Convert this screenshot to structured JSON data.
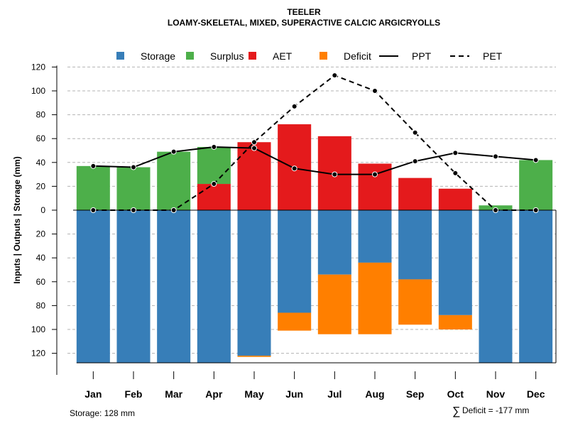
{
  "chart_data": {
    "type": "bar",
    "title": "TEELER",
    "subtitle": "LOAMY-SKELETAL, MIXED, SUPERACTIVE CALCIC ARGICRYOLLS",
    "ylabel": "Inputs | Outputs | Storage     (mm)",
    "ylim": [
      -128,
      120
    ],
    "y_ticks": [
      120,
      100,
      80,
      60,
      40,
      20,
      0,
      -20,
      -40,
      -60,
      -80,
      -100,
      -120
    ],
    "y_tick_labels": [
      "120",
      "100",
      "80",
      "60",
      "40",
      "20",
      "0",
      "20",
      "40",
      "60",
      "80",
      "100",
      "120"
    ],
    "categories": [
      "Jan",
      "Feb",
      "Mar",
      "Apr",
      "May",
      "Jun",
      "Jul",
      "Aug",
      "Sep",
      "Oct",
      "Nov",
      "Dec"
    ],
    "legend": [
      {
        "key": "storage",
        "label": "Storage",
        "kind": "box",
        "color": "#377EB8"
      },
      {
        "key": "surplus",
        "label": "Surplus",
        "kind": "box",
        "color": "#4DAF4A"
      },
      {
        "key": "aet",
        "label": "AET",
        "kind": "box",
        "color": "#E41A1C"
      },
      {
        "key": "deficit",
        "label": "Deficit",
        "kind": "box",
        "color": "#FF7F00"
      },
      {
        "key": "ppt",
        "label": "PPT",
        "kind": "solid",
        "color": "#000000"
      },
      {
        "key": "pet",
        "label": "PET",
        "kind": "dashed",
        "color": "#000000"
      }
    ],
    "series": [
      {
        "name": "Storage",
        "color": "#377EB8",
        "values": [
          128,
          128,
          128,
          128,
          122,
          86,
          54,
          44,
          58,
          88,
          128,
          128
        ]
      },
      {
        "name": "Deficit",
        "color": "#FF7F00",
        "values": [
          0,
          0,
          0,
          0,
          1,
          15,
          50,
          60,
          38,
          12,
          0,
          0
        ]
      },
      {
        "name": "AET",
        "color": "#E41A1C",
        "values": [
          0,
          0,
          0,
          22,
          57,
          72,
          62,
          39,
          27,
          18,
          0,
          0
        ]
      },
      {
        "name": "Surplus",
        "color": "#4DAF4A",
        "values": [
          37,
          36,
          49,
          31,
          0,
          0,
          0,
          0,
          0,
          0,
          4,
          42
        ]
      },
      {
        "name": "PPT",
        "color": "#000000",
        "values": [
          37,
          36,
          49,
          53,
          52,
          35,
          30,
          30,
          41,
          48,
          45,
          42
        ]
      },
      {
        "name": "PET",
        "color": "#000000",
        "values": [
          0,
          0,
          0,
          22,
          57,
          87,
          113,
          100,
          65,
          31,
          0,
          0
        ]
      }
    ]
  },
  "footer": {
    "storage_note": "Storage: 128 mm",
    "deficit_symbol": "∑",
    "deficit_note": "Deficit = -177 mm"
  }
}
